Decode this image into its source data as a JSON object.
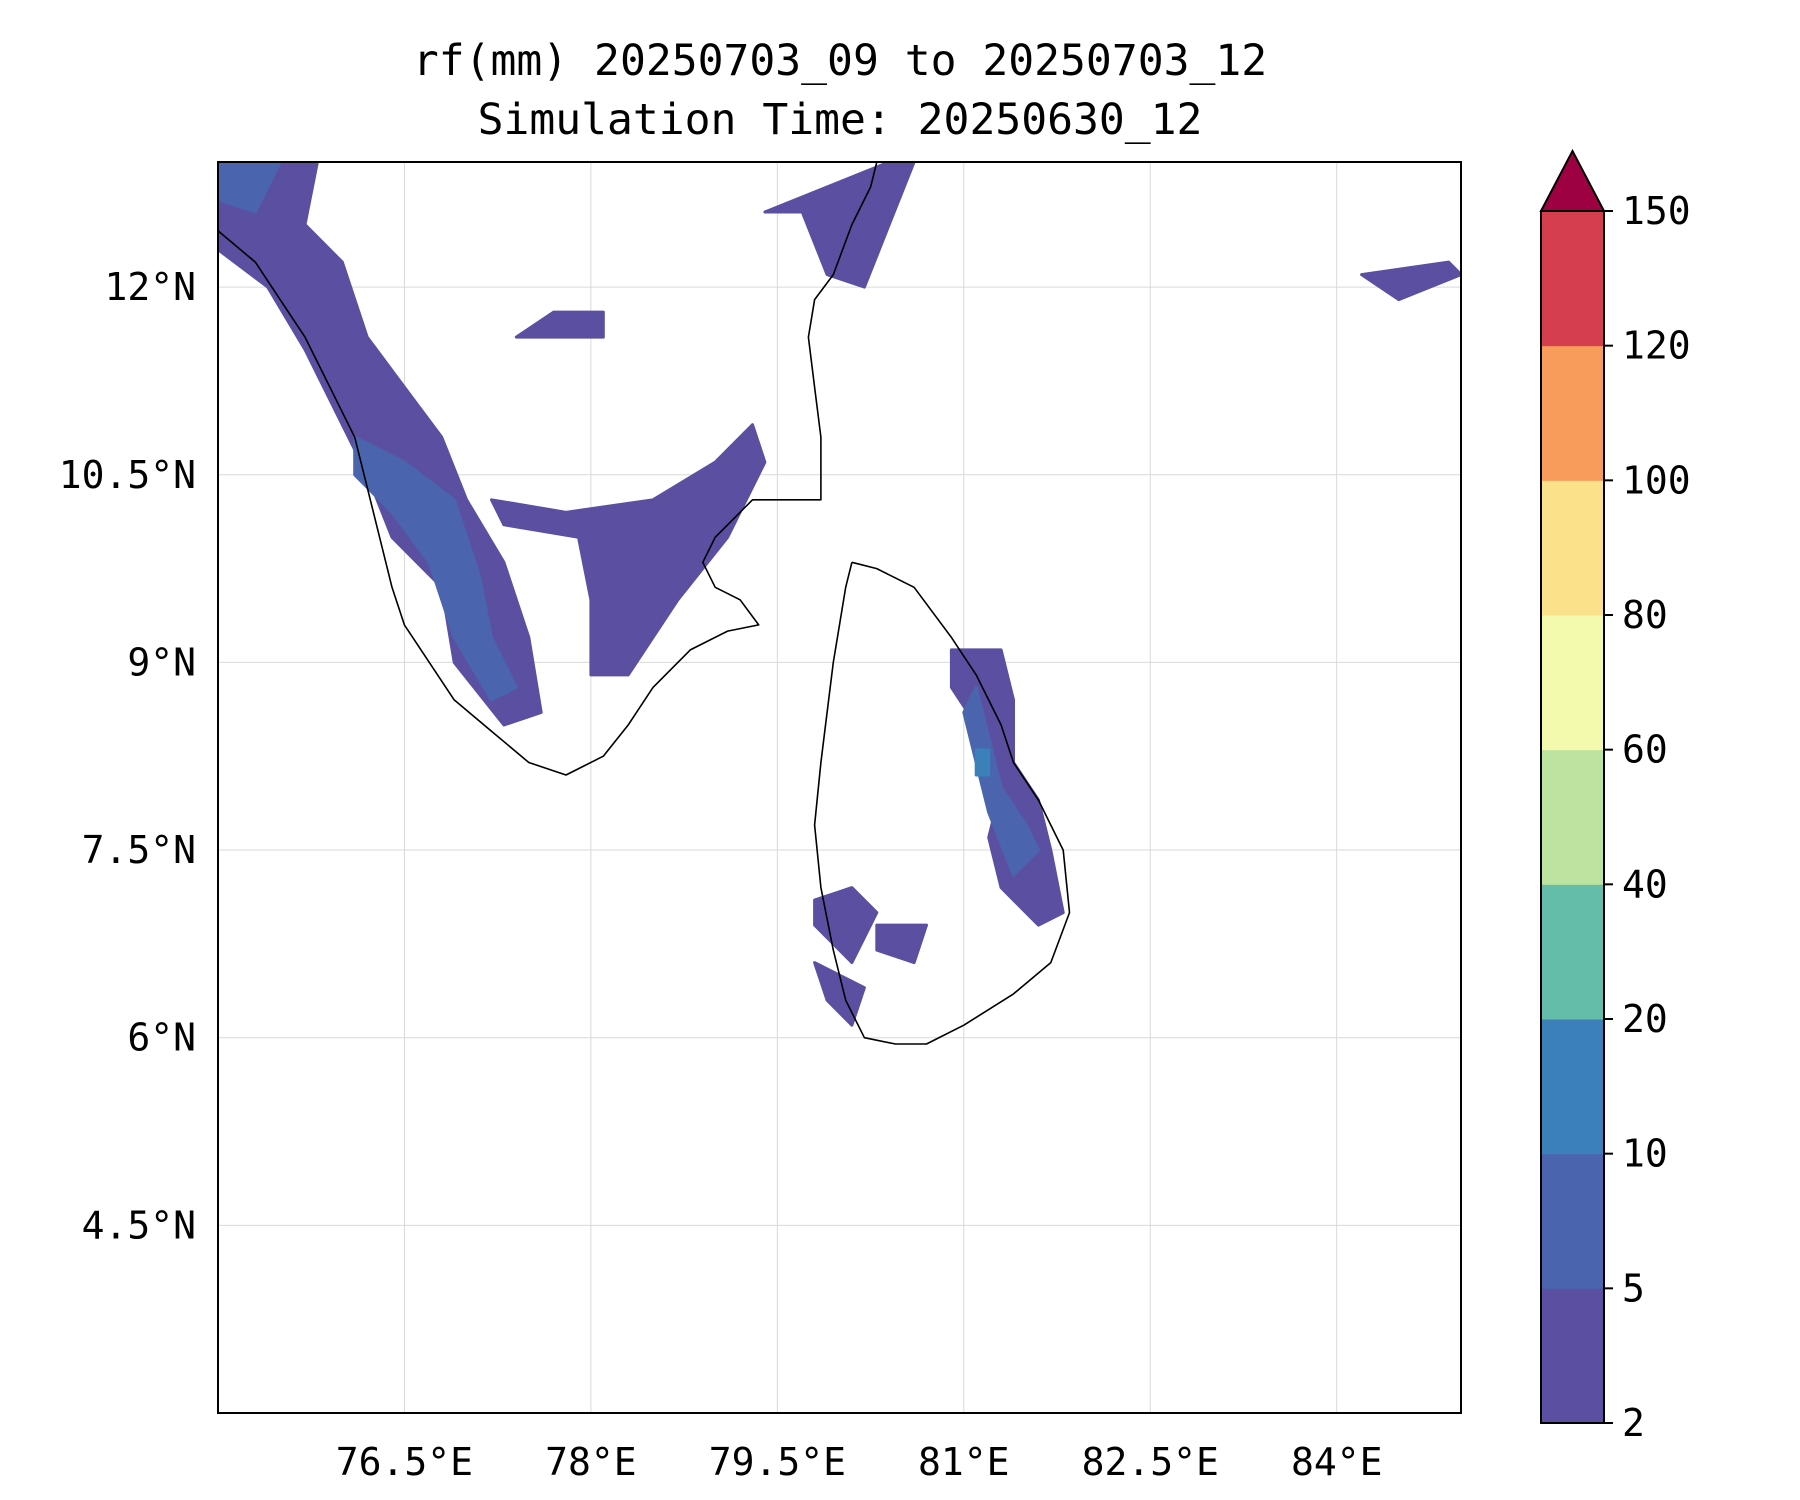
{
  "title": {
    "line1": "rf(mm) 20250703_09 to 20250703_12",
    "line2": "Simulation Time: 20250630_12"
  },
  "chart_data": {
    "type": "map-contourf",
    "projection": "PlateCarree",
    "extent": {
      "lon": [
        75.0,
        85.0
      ],
      "lat": [
        3.0,
        13.0
      ]
    },
    "lon_ticks": [
      76.5,
      78,
      79.5,
      81,
      82.5,
      84
    ],
    "lon_tick_labels": [
      "76.5°E",
      "78°E",
      "79.5°E",
      "81°E",
      "82.5°E",
      "84°E"
    ],
    "lat_ticks": [
      12,
      10.5,
      9,
      7.5,
      6,
      4.5
    ],
    "lat_tick_labels": [
      "12°N",
      "10.5°N",
      "9°N",
      "7.5°N",
      "6°N",
      "4.5°N"
    ],
    "gridlines": true,
    "colorbar": {
      "levels": [
        2,
        5,
        10,
        20,
        40,
        60,
        80,
        100,
        120,
        150
      ],
      "tick_labels": [
        "2",
        "5",
        "10",
        "20",
        "40",
        "60",
        "80",
        "100",
        "120",
        "150"
      ],
      "colors": [
        "#5a4fa1",
        "#4a65ae",
        "#3b80b9",
        "#63bda8",
        "#bde3a0",
        "#f3faad",
        "#fbe28a",
        "#f89c5b",
        "#d53e4f"
      ],
      "extend_color": "#9e0142",
      "extend": "max",
      "position": "right"
    },
    "rain_regions_lonlat": [
      {
        "level": 0,
        "pts": [
          [
            75.0,
            13.0
          ],
          [
            75.8,
            13.0
          ],
          [
            75.7,
            12.5
          ],
          [
            76.0,
            12.2
          ],
          [
            76.2,
            11.6
          ],
          [
            76.5,
            11.2
          ],
          [
            76.8,
            10.8
          ],
          [
            77.0,
            10.3
          ],
          [
            77.3,
            9.8
          ],
          [
            77.5,
            9.2
          ],
          [
            77.6,
            8.6
          ],
          [
            77.3,
            8.5
          ],
          [
            76.9,
            9.0
          ],
          [
            76.8,
            9.6
          ],
          [
            76.4,
            10.0
          ],
          [
            76.2,
            10.5
          ],
          [
            76.0,
            10.9
          ],
          [
            75.7,
            11.5
          ],
          [
            75.4,
            12.0
          ],
          [
            75.0,
            12.3
          ]
        ]
      },
      {
        "level": 0,
        "pts": [
          [
            77.2,
            10.3
          ],
          [
            77.8,
            10.2
          ],
          [
            78.5,
            10.3
          ],
          [
            79.0,
            10.6
          ],
          [
            79.3,
            10.9
          ],
          [
            79.4,
            10.6
          ],
          [
            79.1,
            10.0
          ],
          [
            78.7,
            9.5
          ],
          [
            78.3,
            8.9
          ],
          [
            78.0,
            8.9
          ],
          [
            78.0,
            9.5
          ],
          [
            77.9,
            10.0
          ],
          [
            77.3,
            10.1
          ]
        ]
      },
      {
        "level": 0,
        "pts": [
          [
            77.4,
            11.6
          ],
          [
            78.1,
            11.6
          ],
          [
            78.1,
            11.8
          ],
          [
            77.7,
            11.8
          ]
        ]
      },
      {
        "level": 0,
        "pts": [
          [
            79.4,
            12.6
          ],
          [
            80.4,
            13.0
          ],
          [
            80.6,
            13.0
          ],
          [
            80.4,
            12.5
          ],
          [
            80.2,
            12.0
          ],
          [
            79.9,
            12.1
          ],
          [
            79.7,
            12.6
          ]
        ]
      },
      {
        "level": 0,
        "pts": [
          [
            80.9,
            9.1
          ],
          [
            81.3,
            9.1
          ],
          [
            81.4,
            8.7
          ],
          [
            81.4,
            8.2
          ],
          [
            81.6,
            7.9
          ],
          [
            81.7,
            7.5
          ],
          [
            81.8,
            7.0
          ],
          [
            81.6,
            6.9
          ],
          [
            81.3,
            7.2
          ],
          [
            81.2,
            7.6
          ],
          [
            81.3,
            8.0
          ],
          [
            81.1,
            8.5
          ],
          [
            80.9,
            8.8
          ]
        ]
      },
      {
        "level": 0,
        "pts": [
          [
            79.8,
            7.1
          ],
          [
            80.1,
            7.2
          ],
          [
            80.3,
            7.0
          ],
          [
            80.1,
            6.6
          ],
          [
            79.8,
            6.9
          ]
        ]
      },
      {
        "level": 0,
        "pts": [
          [
            80.3,
            6.9
          ],
          [
            80.7,
            6.9
          ],
          [
            80.6,
            6.6
          ],
          [
            80.3,
            6.7
          ]
        ]
      },
      {
        "level": 0,
        "pts": [
          [
            79.8,
            6.6
          ],
          [
            80.2,
            6.4
          ],
          [
            80.1,
            6.1
          ],
          [
            79.9,
            6.3
          ]
        ]
      },
      {
        "level": 0,
        "pts": [
          [
            84.2,
            12.1
          ],
          [
            84.9,
            12.2
          ],
          [
            85.0,
            12.1
          ],
          [
            84.5,
            11.9
          ]
        ]
      },
      {
        "level": 0,
        "pts": [
          [
            75.9,
            11.5
          ],
          [
            76.2,
            11.5
          ],
          [
            76.2,
            11.3
          ],
          [
            75.9,
            11.3
          ]
        ]
      },
      {
        "level": 1,
        "pts": [
          [
            75.0,
            13.0
          ],
          [
            75.5,
            13.0
          ],
          [
            75.3,
            12.6
          ],
          [
            75.0,
            12.7
          ]
        ]
      },
      {
        "level": 1,
        "pts": [
          [
            76.1,
            10.8
          ],
          [
            76.5,
            10.6
          ],
          [
            76.9,
            10.3
          ],
          [
            77.1,
            9.7
          ],
          [
            77.2,
            9.2
          ],
          [
            77.4,
            8.8
          ],
          [
            77.2,
            8.7
          ],
          [
            76.9,
            9.2
          ],
          [
            76.7,
            9.8
          ],
          [
            76.4,
            10.2
          ],
          [
            76.1,
            10.5
          ]
        ]
      },
      {
        "level": 1,
        "pts": [
          [
            81.1,
            8.8
          ],
          [
            81.2,
            8.4
          ],
          [
            81.3,
            8.0
          ],
          [
            81.5,
            7.7
          ],
          [
            81.6,
            7.5
          ],
          [
            81.4,
            7.3
          ],
          [
            81.2,
            7.8
          ],
          [
            81.1,
            8.2
          ],
          [
            81.0,
            8.6
          ]
        ]
      },
      {
        "level": 2,
        "pts": [
          [
            81.1,
            8.3
          ],
          [
            81.2,
            8.3
          ],
          [
            81.2,
            8.1
          ],
          [
            81.1,
            8.1
          ]
        ]
      }
    ]
  }
}
